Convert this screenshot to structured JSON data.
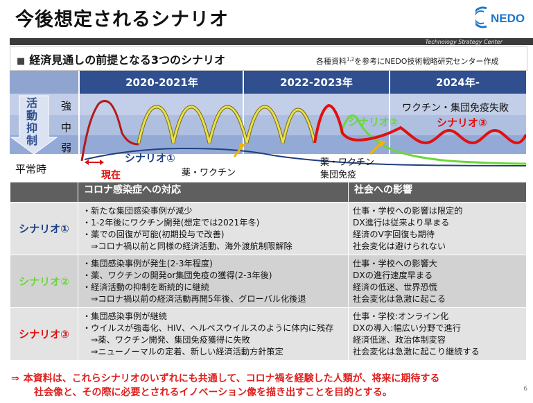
{
  "header": {
    "title": "今後想定されるシナリオ",
    "logo_text": "NEDO",
    "org_caption": "Technology Strategy Center"
  },
  "section": {
    "bullet": "■",
    "title": "経済見通しの前提となる3つのシナリオ",
    "source_pre": "各種資料",
    "source_sup": "1,2",
    "source_post": "を参考にNEDO技術戦略研究センター作成"
  },
  "diagram": {
    "years": [
      "2020-2021年",
      "2022-2023年",
      "2024年-"
    ],
    "activity_label": [
      "活",
      "動",
      "抑",
      "制"
    ],
    "levels": {
      "strong": "強",
      "mid": "中",
      "weak": "弱",
      "normal": "平常時"
    },
    "labels": {
      "scenario1": "シナリオ①",
      "scenario2": "シナリオ②",
      "scenario3": "シナリオ③",
      "now": "現在",
      "vaccine": "薬・ワクチン",
      "vaccine_immunity_1": "薬・ワクチン",
      "vaccine_immunity_2": "集団免疫",
      "failure": "ワクチン・集団免疫失敗"
    },
    "colors": {
      "band_dark": "#2f4f8e",
      "band_mid": "#5f7fbc",
      "scenario1": "#1f3f7f",
      "scenario2": "#6cd63c",
      "scenario3": "#e01010",
      "wave_fill": "#e8e050",
      "arrow": "#f0b400"
    }
  },
  "table": {
    "headers": [
      "",
      "コロナ感染症への対応",
      "社会への影響"
    ],
    "rows": [
      {
        "name": "シナリオ①",
        "color": "#1f3f7f",
        "response": [
          "・新たな集団感染事例が減少",
          "・1-2年後にワクチン開発(想定では2021年冬)",
          "・薬での回復が可能(初期投与で改善)",
          "　⇒コロナ禍以前と同様の経済活動、海外渡航制限解除"
        ],
        "impact": [
          "仕事・学校への影響は限定的",
          "DX進行は従来より早まる",
          "経済のV字回復も期待",
          "社会変化は避けられない"
        ]
      },
      {
        "name": "シナリオ②",
        "color": "#6cd63c",
        "response": [
          "・集団感染事例が発生(2-3年程度)",
          "・薬、ワクチンの開発or集団免疫の獲得(2-3年後)",
          "・経済活動の抑制を断続的に継続",
          "　⇒コロナ禍以前の経済活動再開5年後、グローバル化後退"
        ],
        "impact": [
          "仕事・学校への影響大",
          "DXの進行速度早まる",
          "経済の低迷、世界恐慌",
          "社会変化は急激に起こる"
        ]
      },
      {
        "name": "シナリオ③",
        "color": "#e01010",
        "response": [
          "・集団感染事例が継続",
          "・ウイルスが強毒化、HIV、ヘルペスウイルスのように体内に残存",
          "　⇒薬、ワクチン開発、集団免疫獲得に失敗",
          "　⇒ニューノーマルの定着、新しい経済活動方針策定"
        ],
        "impact": [
          "仕事・学校:オンライン化",
          "DXの導入:幅広い分野で進行",
          "経済低迷、政治体制変容",
          "社会変化は急激に起こり継続する"
        ]
      }
    ]
  },
  "note": {
    "arrow": "⇒",
    "line1": "本資料は、これらシナリオのいずれにも共通して、コロナ禍を経験した人類が、将来に期待する",
    "line2": "社会像と、その際に必要とされるイノベーション像を描き出すことを目的とする。"
  },
  "page_number": "6"
}
